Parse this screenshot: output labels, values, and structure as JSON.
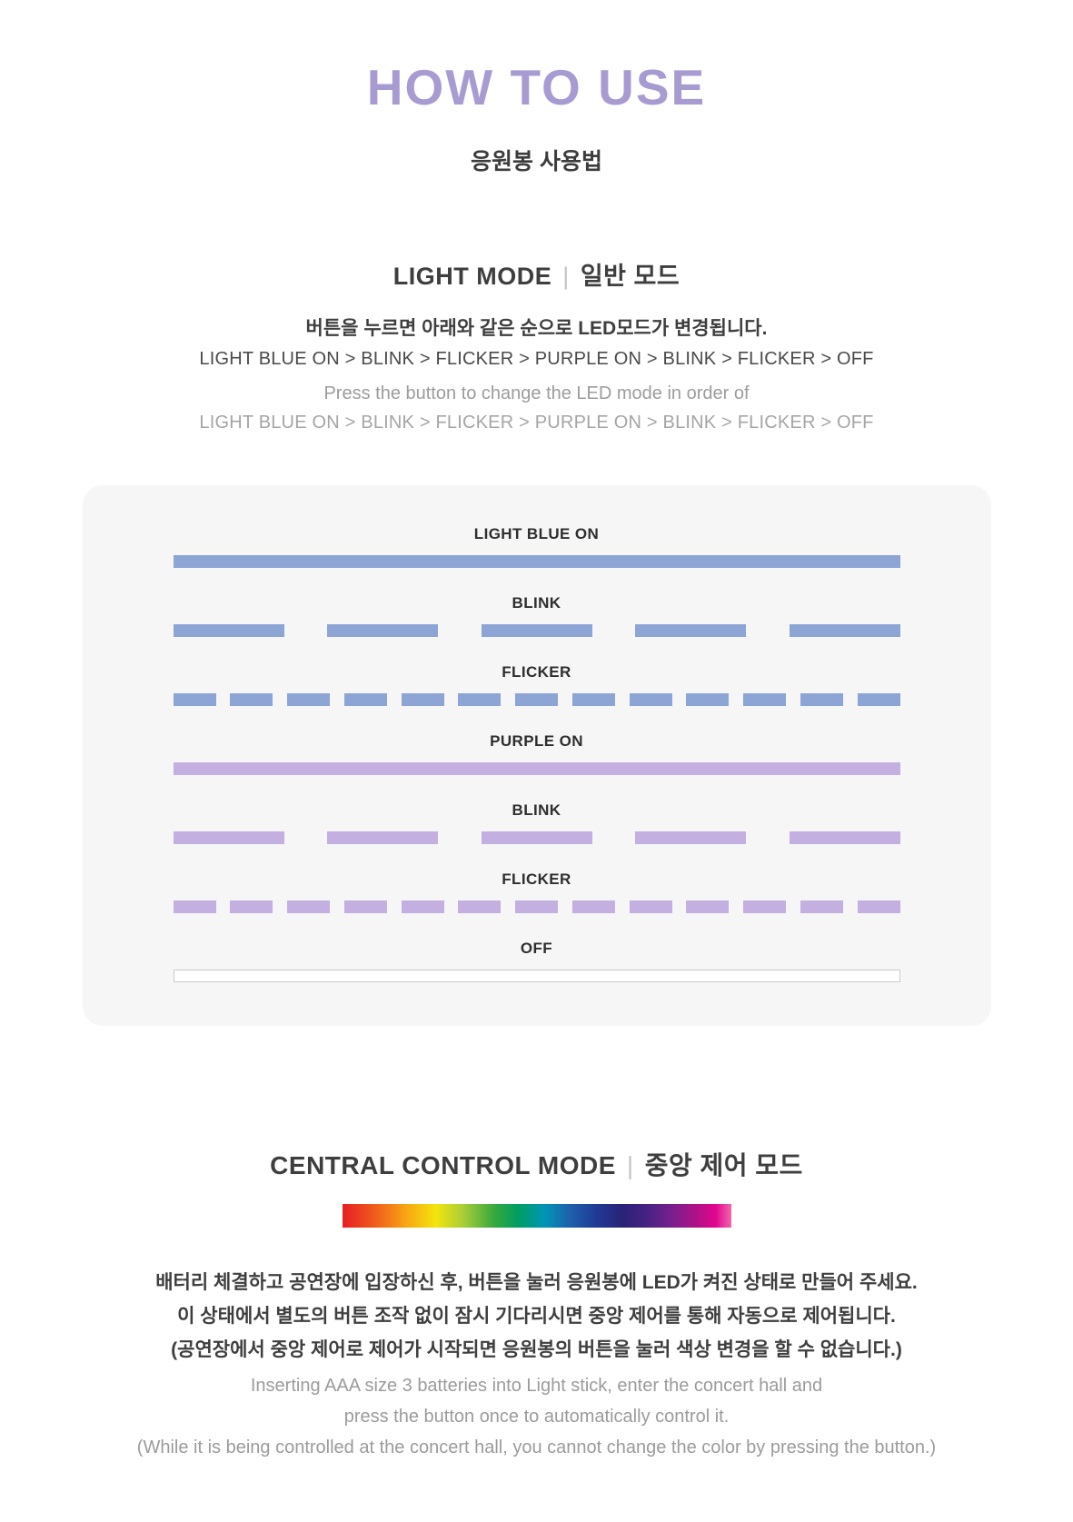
{
  "page": {
    "title": "HOW TO USE",
    "subtitle_ko": "응원봉 사용법"
  },
  "light_mode": {
    "heading_en": "LIGHT MODE",
    "heading_divider": "|",
    "heading_ko": "일반 모드",
    "desc_ko": "버튼을 누르면 아래와 같은 순으로 LED모드가 변경됩니다.",
    "sequence_dark": "LIGHT BLUE ON > BLINK > FLICKER > PURPLE ON > BLINK > FLICKER > OFF",
    "desc_en": "Press the button to change the LED mode in order of",
    "sequence_gray": "LIGHT BLUE ON > BLINK > FLICKER > PURPLE ON > BLINK > FLICKER > OFF",
    "modes": [
      {
        "label": "LIGHT BLUE ON",
        "pattern": "solid",
        "color": "#8ca5d4"
      },
      {
        "label": "BLINK",
        "pattern": "blink",
        "color": "#8ca5d4",
        "segments": 5
      },
      {
        "label": "FLICKER",
        "pattern": "flicker",
        "color": "#8ca5d4",
        "segments": 13
      },
      {
        "label": "PURPLE ON",
        "pattern": "solid",
        "color": "#c3afe0"
      },
      {
        "label": "BLINK",
        "pattern": "blink",
        "color": "#c3afe0",
        "segments": 5
      },
      {
        "label": "FLICKER",
        "pattern": "flicker",
        "color": "#c3afe0",
        "segments": 13
      },
      {
        "label": "OFF",
        "pattern": "off",
        "color": "#ffffff"
      }
    ]
  },
  "central_control": {
    "heading_en": "CENTRAL CONTROL MODE",
    "heading_divider": "|",
    "heading_ko": "중앙 제어 모드",
    "rainbow_colors": [
      "#e61e25 0%",
      "#f0591c 8%",
      "#f6a313 16%",
      "#f4e50c 24%",
      "#a9ce38 31%",
      "#36a93c 39%",
      "#009e60 45%",
      "#0095b7 52%",
      "#1d64ad 58%",
      "#1f3b97 65%",
      "#282377 72%",
      "#4b2284 79%",
      "#7a1f8e 85%",
      "#b01187 91%",
      "#e2068f 96%",
      "#f266ac 100%"
    ],
    "desc_ko_lines": [
      "배터리 체결하고 공연장에 입장하신 후, 버튼을 눌러 응원봉에 LED가 켜진 상태로 만들어 주세요.",
      "이 상태에서 별도의 버튼 조작 없이 잠시 기다리시면 중앙 제어를 통해 자동으로 제어됩니다.",
      "(공연장에서 중앙 제어로 제어가 시작되면 응원봉의 버튼을 눌러 색상 변경을 할 수 없습니다.)"
    ],
    "desc_en_lines": [
      "Inserting AAA size 3 batteries into Light stick, enter the concert hall and",
      "press the button once to automatically control it.",
      "(While it is being controlled at the concert hall, you cannot change the color by pressing the button.)"
    ]
  },
  "colors": {
    "title_purple": "#a89bd1",
    "light_blue_led": "#8ca5d4",
    "purple_led": "#c3afe0",
    "panel_background": "#f6f6f7",
    "dark_text": "#3e3e3e",
    "gray_text": "#9c9c9c"
  }
}
